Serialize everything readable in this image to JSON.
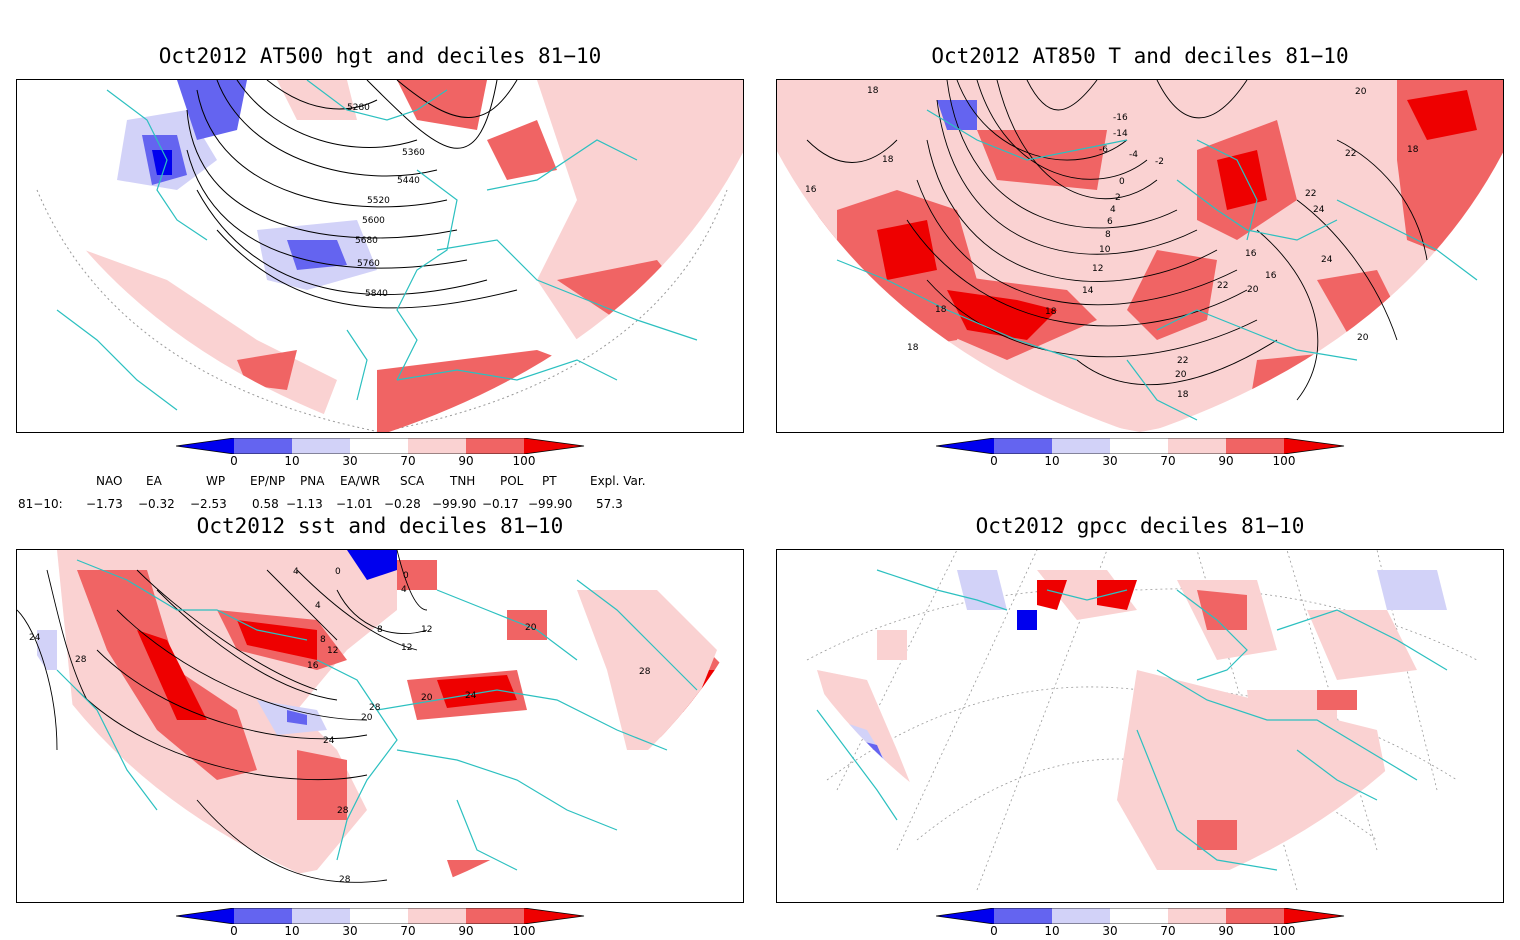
{
  "colors": {
    "dark_blue": "#0000ee",
    "mid_blue": "#6464f0",
    "light_blue": "#d2d2f8",
    "light_red": "#fad2d2",
    "mid_red": "#f06464",
    "dark_red": "#ee0000",
    "coast": "#2cc0c0",
    "grid": "#999999"
  },
  "colorbar": {
    "labels": [
      "0",
      "10",
      "30",
      "70",
      "90",
      "100"
    ]
  },
  "panels": [
    {
      "title": "Oct2012 AT500 hgt and deciles 81−10",
      "contour_labels": [
        "5280",
        "5360",
        "5440",
        "5520",
        "5600",
        "5680",
        "5760",
        "5840"
      ]
    },
    {
      "title": "Oct2012 AT850 T and deciles 81−10",
      "contour_labels": [
        "18",
        "18",
        "16",
        "-6",
        "-4",
        "-2",
        "0",
        "2",
        "4",
        "6",
        "8",
        "10",
        "12",
        "14",
        "16",
        "16",
        "18",
        "18",
        "20",
        "20",
        "22",
        "22",
        "24",
        "24",
        "22",
        "20",
        "18",
        "20",
        "22",
        "18",
        "-16",
        "-14",
        "18"
      ]
    },
    {
      "title": "Oct2012 sst and deciles 81−10",
      "contour_labels": [
        "24",
        "28",
        "4",
        "8",
        "12",
        "16",
        "20",
        "24",
        "28",
        "28",
        "20",
        "24",
        "12",
        "4",
        "0",
        "4",
        "0",
        "8",
        "12",
        "20",
        "28",
        "28"
      ]
    },
    {
      "title": "Oct2012 gpcc deciles 81−10",
      "contour_labels": []
    }
  ],
  "indices": {
    "row_label": "81−10:",
    "headers": [
      "NAO",
      "EA",
      "WP",
      "EP/NP",
      "PNA",
      "EA/WR",
      "SCA",
      "TNH",
      "POL",
      "PT",
      "Expl. Var."
    ],
    "values": [
      "−1.73",
      "−0.32",
      "−2.53",
      "0.58",
      "−1.13",
      "−1.01",
      "−0.28",
      "−99.90",
      "−0.17",
      "−99.90",
      "57.3"
    ]
  }
}
